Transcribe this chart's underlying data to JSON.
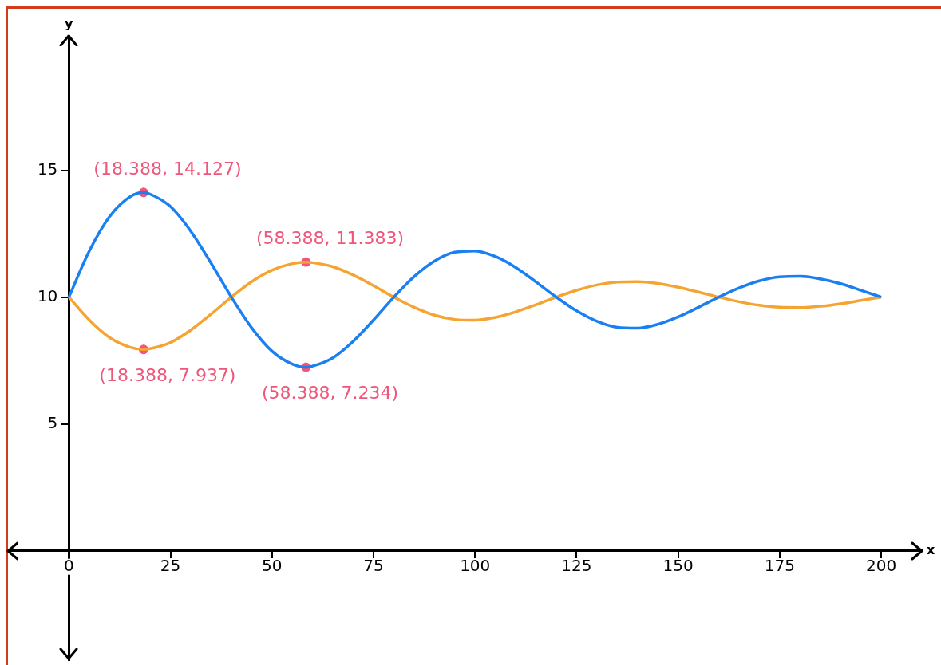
{
  "chart_data": {
    "type": "line",
    "xlabel": "x",
    "ylabel": "y",
    "xlim": [
      -15,
      210
    ],
    "ylim": [
      -4.3,
      20.3
    ],
    "xticks": [
      0,
      25,
      50,
      75,
      100,
      125,
      150,
      175,
      200
    ],
    "yticks": [
      5,
      10,
      15
    ],
    "grid": false,
    "legend": false,
    "marker": "none",
    "line_style": "solid",
    "series": [
      {
        "color": "#1a7ff0",
        "x": [
          0,
          5,
          10,
          15,
          18.388,
          20,
          25,
          30,
          35,
          40,
          45,
          50,
          55,
          58.388,
          60,
          65,
          70,
          75,
          80,
          85,
          90,
          95,
          100,
          105,
          110,
          115,
          120,
          125,
          130,
          135,
          140,
          145,
          150,
          155,
          160,
          165,
          170,
          175,
          180,
          185,
          190,
          195,
          200
        ],
        "values": [
          10,
          11.81,
          13.17,
          13.95,
          14.127,
          14.06,
          13.57,
          12.6,
          11.34,
          10,
          8.79,
          7.87,
          7.36,
          7.234,
          7.28,
          7.61,
          8.26,
          9.1,
          10,
          10.81,
          11.42,
          11.77,
          11.82,
          11.6,
          11.17,
          10.6,
          10,
          9.46,
          9.05,
          8.81,
          8.78,
          8.93,
          9.22,
          9.6,
          10,
          10.36,
          10.64,
          10.8,
          10.82,
          10.72,
          10.53,
          10.27,
          10
        ]
      },
      {
        "color": "#f5a431",
        "x": [
          0,
          5,
          10,
          15,
          18.388,
          20,
          25,
          30,
          35,
          40,
          45,
          50,
          55,
          58.388,
          60,
          65,
          70,
          75,
          80,
          85,
          90,
          95,
          100,
          105,
          110,
          115,
          120,
          125,
          130,
          135,
          140,
          145,
          150,
          155,
          160,
          165,
          170,
          175,
          180,
          185,
          190,
          195,
          200
        ],
        "values": [
          10,
          9.1,
          8.41,
          8.03,
          7.937,
          7.97,
          8.21,
          8.7,
          9.33,
          10,
          10.61,
          11.06,
          11.32,
          11.383,
          11.36,
          11.2,
          10.87,
          10.45,
          10,
          9.6,
          9.29,
          9.12,
          9.09,
          9.2,
          9.42,
          9.7,
          10,
          10.27,
          10.48,
          10.59,
          10.61,
          10.54,
          10.39,
          10.2,
          10,
          9.82,
          9.68,
          9.6,
          9.59,
          9.64,
          9.74,
          9.87,
          10
        ]
      },
      {
        "type": "scatter",
        "marker": "circle",
        "color": "#f0557a",
        "x": [
          18.388,
          18.388,
          58.388,
          58.388
        ],
        "values": [
          14.127,
          7.937,
          11.383,
          7.234
        ],
        "value_labels": [
          "(18.388, 14.127)",
          "(18.388, 7.937)",
          "(58.388, 11.383)",
          "(58.388, 7.234)"
        ]
      }
    ]
  }
}
